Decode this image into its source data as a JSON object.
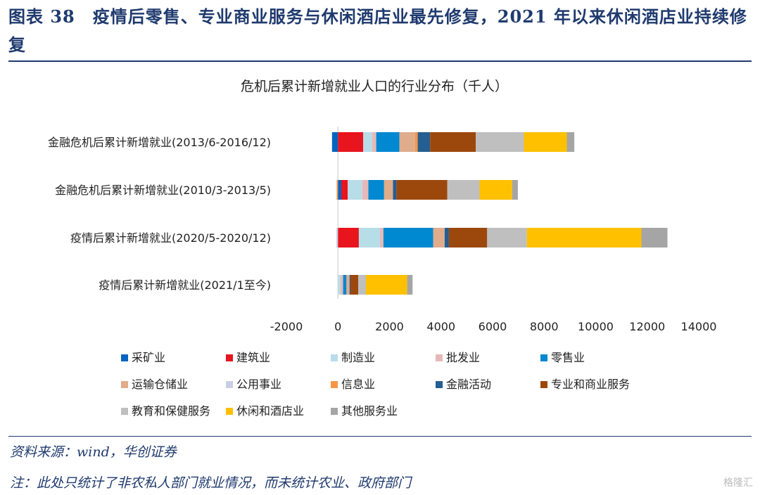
{
  "header": {
    "title": "图表 38　疫情后零售、专业商业服务与休闲酒店业最先修复，2021 年以来休闲酒店业持续修复"
  },
  "footer": {
    "source": "资料来源：wind，华创证券",
    "note": "注：此处只统计了非农私人部门就业情况，而未统计农业、政府部门",
    "watermark": "格隆汇"
  },
  "chart_data": {
    "type": "bar",
    "orientation": "horizontal",
    "stacked": true,
    "title": "危机后累计新增就业人口的行业分布（千人）",
    "categories": [
      "金融危机后累计新增就业(2013/6-2016/12)",
      "金融危机后累计新增就业(2010/3-2013/5)",
      "疫情后累计新增就业(2020/5-2020/12)",
      "疫情后累计新增就业(2021/1至今)"
    ],
    "xlim": [
      -2000,
      14000
    ],
    "xticks": [
      -2000,
      0,
      2000,
      4000,
      6000,
      8000,
      10000,
      12000,
      14000
    ],
    "legend_position": "bottom",
    "series": [
      {
        "name": "采矿业",
        "color": "#0563C1",
        "values": [
          -230,
          130,
          0,
          0
        ]
      },
      {
        "name": "建筑业",
        "color": "#E8141E",
        "values": [
          980,
          250,
          810,
          0
        ]
      },
      {
        "name": "制造业",
        "color": "#B7DDE8",
        "values": [
          350,
          565,
          820,
          100
        ]
      },
      {
        "name": "批发业",
        "color": "#E6B9B8",
        "values": [
          155,
          235,
          135,
          100
        ]
      },
      {
        "name": "零售业",
        "color": "#0088D1",
        "values": [
          900,
          610,
          1930,
          130
        ]
      },
      {
        "name": "运输仓储业",
        "color": "#DFAC8C",
        "values": [
          610,
          345,
          445,
          120
        ]
      },
      {
        "name": "公用事业",
        "color": "#C9CFE3",
        "values": [
          0,
          0,
          -60,
          0
        ]
      },
      {
        "name": "信息业",
        "color": "#F79646",
        "values": [
          100,
          -50,
          0,
          0
        ]
      },
      {
        "name": "金融活动",
        "color": "#255E91",
        "values": [
          480,
          135,
          165,
          35
        ]
      },
      {
        "name": "专业和商业服务",
        "color": "#9C480D",
        "values": [
          1770,
          1975,
          1485,
          300
        ]
      },
      {
        "name": "教育和保健服务",
        "color": "#BFBFBF",
        "values": [
          1870,
          1250,
          1540,
          300
        ]
      },
      {
        "name": "休闲和酒店业",
        "color": "#FFC000",
        "values": [
          1665,
          1265,
          4445,
          1600
        ]
      },
      {
        "name": "其他服务业",
        "color": "#A5A5A5",
        "values": [
          290,
          220,
          1010,
          210
        ]
      }
    ]
  }
}
